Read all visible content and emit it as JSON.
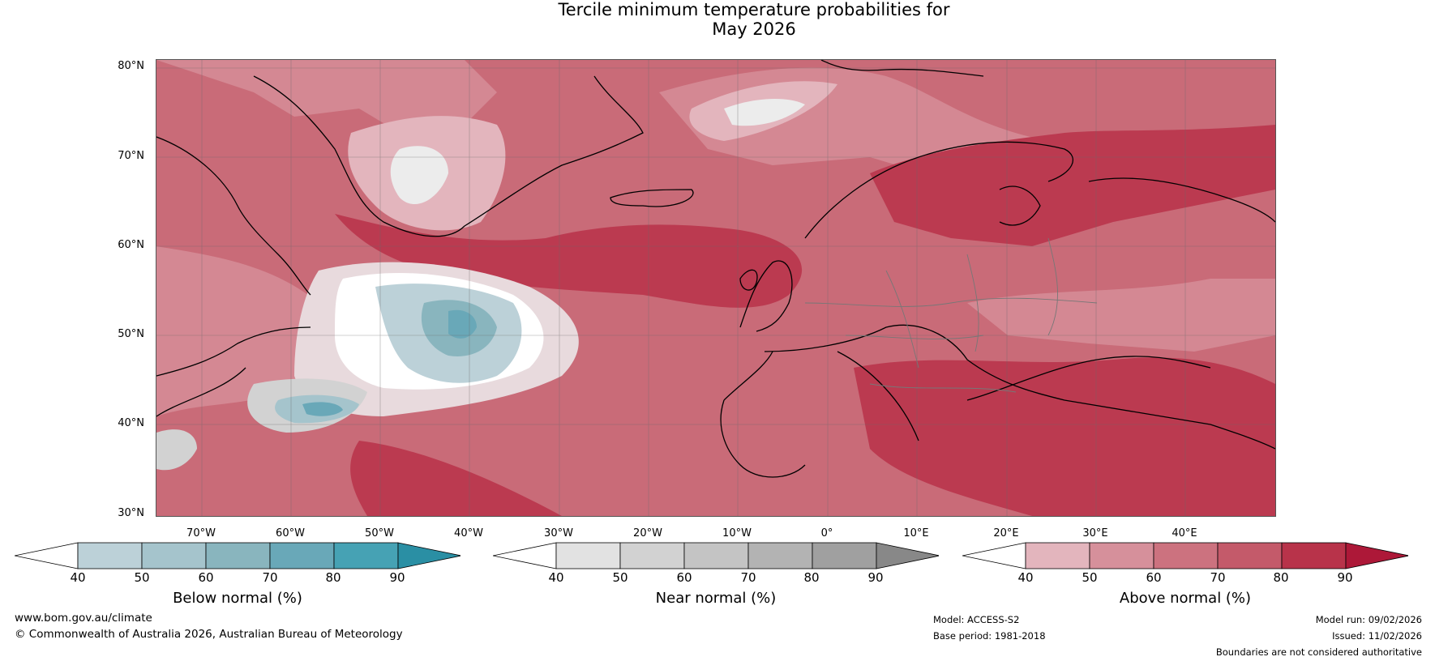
{
  "title_line1": "Tercile minimum temperature probabilities for",
  "title_line2": "May 2026",
  "lat_labels": [
    "80°N",
    "70°N",
    "60°N",
    "50°N",
    "40°N",
    "30°N"
  ],
  "lon_labels": [
    "70°W",
    "60°W",
    "50°W",
    "40°W",
    "30°W",
    "20°W",
    "10°W",
    "0°",
    "10°E",
    "20°E",
    "30°E",
    "40°E"
  ],
  "colorbars": [
    {
      "label": "Below normal (%)",
      "ticks": [
        "40",
        "50",
        "60",
        "70",
        "80",
        "90"
      ],
      "colors": [
        "#ffffff",
        "#bcd1d8",
        "#a5c4cc",
        "#89b5be",
        "#69a8b8",
        "#46a2b4",
        "#2a8fa4"
      ]
    },
    {
      "label": "Near normal (%)",
      "ticks": [
        "40",
        "50",
        "60",
        "70",
        "80",
        "90"
      ],
      "colors": [
        "#ffffff",
        "#e2e2e2",
        "#d2d2d2",
        "#c4c4c4",
        "#b3b3b3",
        "#a0a0a0",
        "#888888"
      ]
    },
    {
      "label": "Above normal (%)",
      "ticks": [
        "40",
        "50",
        "60",
        "70",
        "80",
        "90"
      ],
      "colors": [
        "#ffffff",
        "#e3b5bd",
        "#d6909b",
        "#cc727f",
        "#c45a6a",
        "#b8334a",
        "#ad1838"
      ]
    }
  ],
  "footer": {
    "website": "www.bom.gov.au/climate",
    "copyright": "© Commonwealth of Australia 2026, Australian Bureau of Meteorology",
    "model": "Model: ACCESS-S2",
    "base_period": "Base period: 1981-2018",
    "model_run": "Model run: 09/02/2026",
    "issued": "Issued: 11/02/2026",
    "disclaimer": "Boundaries are not considered authoritative"
  }
}
